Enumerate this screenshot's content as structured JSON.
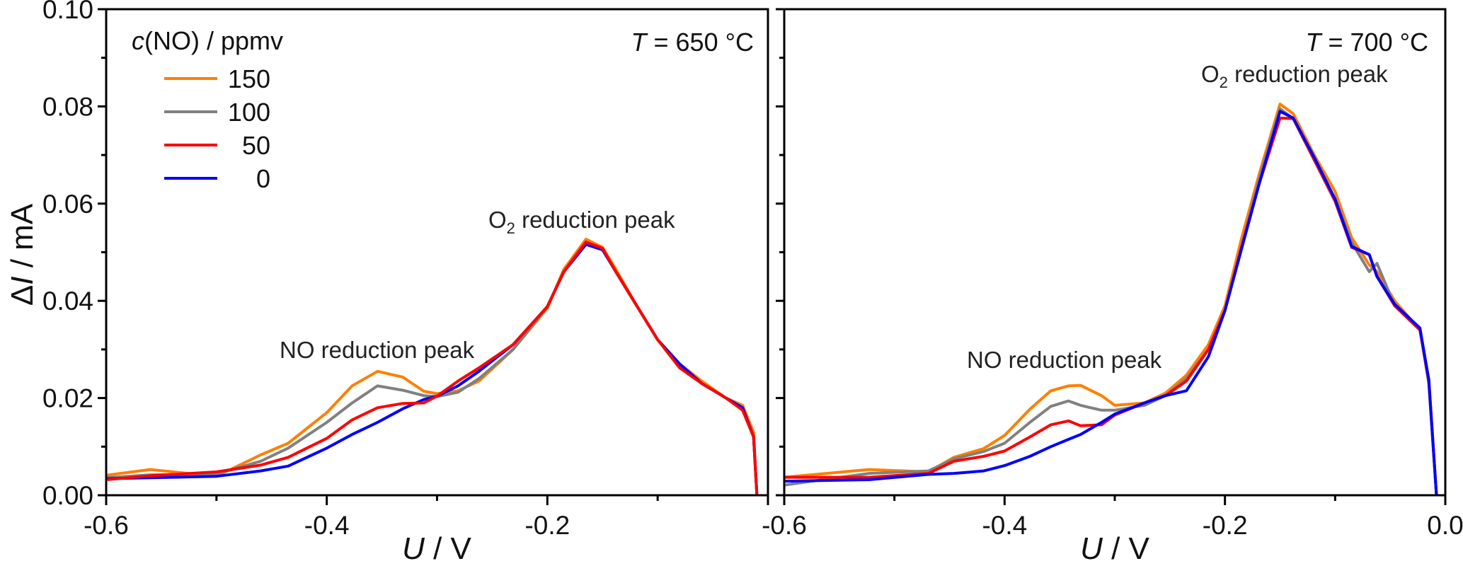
{
  "chart_data": [
    {
      "type": "line",
      "title": "T = 650 °C",
      "title_parts": {
        "var": "T",
        "rest": " = 650 °C"
      },
      "xlabel": {
        "var": "U",
        "rest": " / V"
      },
      "ylabel": {
        "prefix": "Δ",
        "var": "I",
        "rest": " / mA"
      },
      "xlim": [
        -0.6,
        0.0
      ],
      "ylim": [
        0,
        0.1
      ],
      "xticks": [
        -0.6,
        -0.4,
        -0.2
      ],
      "xtick_labels": [
        "-0.6",
        "-0.4",
        "-0.2"
      ],
      "yticks": [
        0,
        0.02,
        0.04,
        0.06,
        0.08,
        0.1
      ],
      "ytick_labels": [
        "0.00",
        "0.02",
        "0.04",
        "0.06",
        "0.08",
        "0.10"
      ],
      "grid": false,
      "annotations": [
        "O2 reduction peak",
        "NO reduction peak"
      ],
      "x": [
        -0.6,
        -0.56,
        -0.5,
        -0.46,
        -0.435,
        -0.4,
        -0.377,
        -0.354,
        -0.331,
        -0.312,
        -0.3,
        -0.281,
        -0.262,
        -0.231,
        -0.2,
        -0.185,
        -0.165,
        -0.15,
        -0.138,
        -0.119,
        -0.1,
        -0.08,
        -0.06,
        -0.038,
        -0.023,
        -0.013,
        -0.01
      ],
      "series": [
        {
          "name": "150",
          "color": "#ff7f00",
          "values": [
            0.0041,
            0.0053,
            0.0039,
            0.0083,
            0.0107,
            0.017,
            0.0225,
            0.0255,
            0.0243,
            0.0214,
            0.0209,
            0.0215,
            0.0235,
            0.03,
            0.0385,
            0.0465,
            0.0527,
            0.051,
            0.0465,
            0.039,
            0.032,
            0.027,
            0.0235,
            0.02,
            0.0185,
            0.013,
            0.0
          ]
        },
        {
          "name": "100",
          "color": "#808080",
          "values": [
            0.0036,
            0.0042,
            0.0044,
            0.007,
            0.0097,
            0.015,
            0.019,
            0.0225,
            0.0216,
            0.0205,
            0.0203,
            0.0212,
            0.024,
            0.03,
            0.0388,
            0.046,
            0.0521,
            0.0508,
            0.046,
            0.039,
            0.032,
            0.027,
            0.023,
            0.02,
            0.018,
            0.012,
            0.0
          ]
        },
        {
          "name": "0",
          "color": "#0000ff",
          "values": [
            0.0034,
            0.0036,
            0.0039,
            0.005,
            0.006,
            0.0097,
            0.0125,
            0.015,
            0.0178,
            0.0197,
            0.0204,
            0.0225,
            0.0255,
            0.031,
            0.0388,
            0.046,
            0.0516,
            0.0505,
            0.046,
            0.039,
            0.032,
            0.027,
            0.023,
            0.02,
            0.018,
            0.012,
            0.0
          ]
        },
        {
          "name": "50",
          "color": "#ff0000",
          "values": [
            0.0032,
            0.004,
            0.0048,
            0.0062,
            0.0078,
            0.0117,
            0.0155,
            0.018,
            0.0189,
            0.019,
            0.0204,
            0.0235,
            0.0262,
            0.031,
            0.0388,
            0.046,
            0.0521,
            0.0508,
            0.046,
            0.039,
            0.032,
            0.0262,
            0.023,
            0.02,
            0.0175,
            0.012,
            0.0
          ]
        }
      ]
    },
    {
      "type": "line",
      "title": "T = 700 °C",
      "title_parts": {
        "var": "T",
        "rest": " = 700 °C"
      },
      "xlabel": {
        "var": "U",
        "rest": " / V"
      },
      "xlim": [
        -0.6,
        0.0
      ],
      "ylim": [
        0,
        0.1
      ],
      "xticks": [
        -0.6,
        -0.4,
        -0.2,
        0.0
      ],
      "xtick_labels": [
        "-0.6",
        "-0.4",
        "-0.2",
        "0.0"
      ],
      "yticks": [
        0,
        0.02,
        0.04,
        0.06,
        0.08,
        0.1
      ],
      "grid": false,
      "annotations": [
        "O2 reduction peak",
        "NO reduction peak"
      ],
      "x": [
        -0.6,
        -0.523,
        -0.469,
        -0.446,
        -0.419,
        -0.4,
        -0.377,
        -0.358,
        -0.342,
        -0.331,
        -0.312,
        -0.3,
        -0.273,
        -0.254,
        -0.235,
        -0.215,
        -0.2,
        -0.185,
        -0.169,
        -0.15,
        -0.138,
        -0.119,
        -0.1,
        -0.085,
        -0.069,
        -0.062,
        -0.046,
        -0.023,
        -0.015,
        -0.008
      ],
      "series": [
        {
          "name": "150",
          "color": "#ff7f00",
          "values": [
            0.0037,
            0.0053,
            0.0048,
            0.0078,
            0.0096,
            0.0123,
            0.0177,
            0.0215,
            0.0225,
            0.0226,
            0.0205,
            0.0185,
            0.019,
            0.021,
            0.0247,
            0.031,
            0.039,
            0.0528,
            0.066,
            0.0805,
            0.0785,
            0.07,
            0.0625,
            0.053,
            0.0474,
            0.046,
            0.04,
            0.034,
            0.024,
            0.0
          ]
        },
        {
          "name": "100",
          "color": "#808080",
          "values": [
            0.0021,
            0.0045,
            0.005,
            0.0075,
            0.009,
            0.0107,
            0.015,
            0.0183,
            0.0194,
            0.0185,
            0.0175,
            0.0175,
            0.0185,
            0.0205,
            0.024,
            0.03,
            0.038,
            0.051,
            0.065,
            0.0795,
            0.0775,
            0.069,
            0.061,
            0.052,
            0.046,
            0.0477,
            0.039,
            0.034,
            0.023,
            0.0
          ]
        },
        {
          "name": "50",
          "color": "#ff0000",
          "values": [
            0.0037,
            0.0037,
            0.0045,
            0.007,
            0.008,
            0.0091,
            0.012,
            0.0145,
            0.0153,
            0.0143,
            0.0145,
            0.0165,
            0.019,
            0.0205,
            0.0235,
            0.03,
            0.038,
            0.051,
            0.064,
            0.0776,
            0.0775,
            0.069,
            0.0605,
            0.051,
            0.0495,
            0.045,
            0.039,
            0.034,
            0.0235,
            0.0
          ]
        },
        {
          "name": "0",
          "color": "#0000ff",
          "values": [
            0.0029,
            0.0032,
            0.0043,
            0.0045,
            0.005,
            0.0061,
            0.008,
            0.01,
            0.0115,
            0.0125,
            0.015,
            0.0167,
            0.019,
            0.0205,
            0.0215,
            0.0285,
            0.038,
            0.0506,
            0.064,
            0.079,
            0.0776,
            0.0695,
            0.0609,
            0.0512,
            0.0495,
            0.045,
            0.0393,
            0.0344,
            0.0237,
            0.0
          ]
        }
      ]
    }
  ],
  "legend": {
    "title": {
      "var": "c",
      "rest": "(NO) / ppmv"
    },
    "placement": "top-left",
    "entries": [
      {
        "label": "150",
        "color": "#ff7f00"
      },
      {
        "label": "100",
        "color": "#808080"
      },
      {
        "label": "50",
        "color": "#ff0000"
      },
      {
        "label": "0",
        "color": "#0000ff"
      }
    ]
  },
  "annotations": {
    "o2_peak": {
      "main": "O",
      "sub": "2",
      "rest": " reduction peak"
    },
    "no_peak": "NO reduction peak"
  }
}
